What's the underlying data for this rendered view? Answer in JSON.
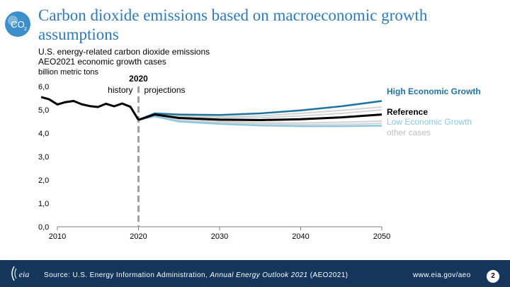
{
  "header": {
    "title": "Carbon dioxide emissions based on macroeconomic growth assumptions",
    "subtitle_line1": "U.S. energy-related carbon dioxide emissions",
    "subtitle_line2": "AEO2021 economic growth cases",
    "units": "billion metric tons",
    "icon": "co2-icon"
  },
  "footer": {
    "source_prefix": "Source: U.S. Energy Information Administration, ",
    "source_italic": "Annual Energy Outlook 2021",
    "source_suffix": " (AEO2021)",
    "url": "www.eia.gov/aeo",
    "page_number": "2",
    "logo": "eia-logo"
  },
  "colors": {
    "title": "#2e7ab8",
    "footer_bg": "#15365c",
    "high": "#1f73a0",
    "reference": "#000000",
    "low": "#8dc8e0",
    "other": "#d4d4d4",
    "divider": "#a0a0a0"
  },
  "chart_data": {
    "type": "line",
    "xlim": [
      2010,
      2050
    ],
    "ylim": [
      0,
      6
    ],
    "x_ticks": [
      "2010",
      "2020",
      "2030",
      "2040",
      "2050"
    ],
    "y_ticks": [
      "0,0",
      "1,0",
      "2,0",
      "3,0",
      "4,0",
      "5,0",
      "6,0"
    ],
    "divider": {
      "year": 2020,
      "label": "2020",
      "left_label": "history",
      "right_label": "projections"
    },
    "history": {
      "x": [
        2008,
        2009,
        2010,
        2011,
        2012,
        2013,
        2014,
        2015,
        2016,
        2017,
        2018,
        2019,
        2020
      ],
      "y": [
        5.55,
        5.45,
        5.23,
        5.33,
        5.38,
        5.24,
        5.16,
        5.12,
        5.26,
        5.15,
        5.27,
        5.13,
        4.57
      ]
    },
    "series": [
      {
        "name": "High Economic Growth",
        "role": "high",
        "x": [
          2020,
          2022,
          2025,
          2030,
          2035,
          2040,
          2045,
          2050
        ],
        "y": [
          4.57,
          4.85,
          4.8,
          4.78,
          4.85,
          4.98,
          5.15,
          5.38
        ]
      },
      {
        "name": "Reference",
        "role": "reference",
        "x": [
          2020,
          2022,
          2025,
          2030,
          2035,
          2040,
          2045,
          2050
        ],
        "y": [
          4.57,
          4.8,
          4.65,
          4.58,
          4.56,
          4.6,
          4.68,
          4.8
        ]
      },
      {
        "name": "Low Economic Growth",
        "role": "low",
        "x": [
          2020,
          2022,
          2025,
          2030,
          2035,
          2040,
          2045,
          2050
        ],
        "y": [
          4.57,
          4.72,
          4.5,
          4.4,
          4.33,
          4.3,
          4.3,
          4.32
        ]
      },
      {
        "name": "other cases",
        "role": "other",
        "x": [
          2020,
          2022,
          2025,
          2030,
          2035,
          2040,
          2045,
          2050
        ],
        "y": [
          4.57,
          4.82,
          4.72,
          4.65,
          4.66,
          4.74,
          4.85,
          5.0
        ]
      },
      {
        "name": "",
        "role": "other",
        "x": [
          2020,
          2022,
          2025,
          2030,
          2035,
          2040,
          2045,
          2050
        ],
        "y": [
          4.57,
          4.78,
          4.6,
          4.5,
          4.45,
          4.44,
          4.47,
          4.52
        ]
      },
      {
        "name": "",
        "role": "other",
        "x": [
          2020,
          2022,
          2025,
          2030,
          2035,
          2040,
          2045,
          2050
        ],
        "y": [
          4.57,
          4.75,
          4.55,
          4.45,
          4.4,
          4.37,
          4.38,
          4.42
        ]
      },
      {
        "name": "",
        "role": "other",
        "x": [
          2020,
          2022,
          2025,
          2030,
          2035,
          2040,
          2045,
          2050
        ],
        "y": [
          4.57,
          4.84,
          4.76,
          4.7,
          4.74,
          4.85,
          4.98,
          5.12
        ]
      }
    ]
  }
}
